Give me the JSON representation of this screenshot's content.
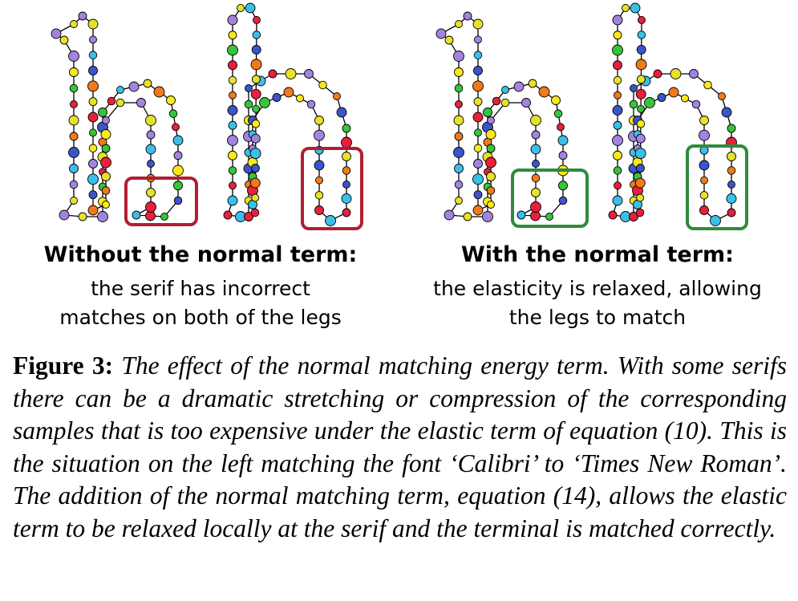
{
  "panels": [
    {
      "heading": "Without the normal term:",
      "lines": [
        "the serif has incorrect",
        "matches on both of the legs"
      ],
      "box_color": "#b01e32"
    },
    {
      "heading": "With the normal term:",
      "lines": [
        "the elasticity is relaxed, allowing",
        "the legs to match"
      ],
      "box_color": "#2e8b3e"
    }
  ],
  "caption": {
    "label": "Figure 3:",
    "text": "The effect of the normal matching energy term. With some serifs there can be a dramatic stretching or compression of the corresponding samples that is too expensive under the elastic term of equation (10). This is the situation on the left matching the font ‘Calibri’ to ‘Times New Roman’. The addition of the normal matching term, equation (14), allows the elastic term to be relaxed locally at the serif and the terminal is matched correctly."
  },
  "sample_colors": [
    "#e6e22a",
    "#3ac0e8",
    "#37c43a",
    "#f17a1a",
    "#a383e0",
    "#e8203c",
    "#3b55c8",
    "#fbe81a"
  ]
}
